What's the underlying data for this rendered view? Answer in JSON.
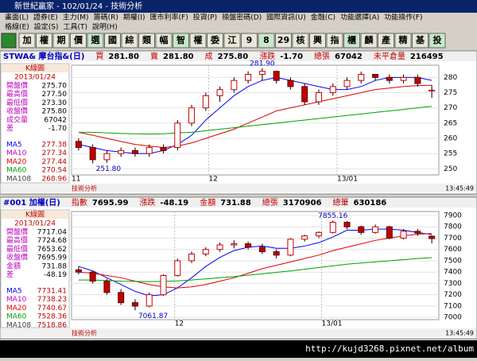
{
  "title_bar": "新世紀贏家 - 102/01/24 - 技術分析",
  "menu": {
    "row1": [
      "畫面(L)",
      "證券(E)",
      "主力(M)",
      "籌碼(R)",
      "期權(I)",
      "匯市利率(F)",
      "投資(P)",
      "操盤密碼(D)",
      "國際資訊(U)",
      "金融(C)",
      "功能選擇(A)",
      "功能操作(F)"
    ],
    "row2": [
      "格線(E)",
      "設定(S)",
      "工具(T)",
      "說明(H)"
    ]
  },
  "toolbar": [
    "加",
    "權",
    "期",
    "價",
    "選",
    "國",
    "綜",
    "類",
    "幅",
    "智",
    "權",
    "委",
    "江",
    "9",
    "8",
    "29",
    "核",
    "興",
    "指",
    "櫃",
    "麟",
    "產",
    "精",
    "基",
    "投"
  ],
  "panels": [
    {
      "symbol": "STWA& 摩台指&(日)",
      "header": [
        {
          "label": "買",
          "value": "281.80"
        },
        {
          "label": "賣",
          "value": "281.80"
        },
        {
          "label": "成",
          "value": "275.80"
        },
        {
          "label": "漲跌",
          "value": "-1.70"
        },
        {
          "label": "總張",
          "value": "67042"
        },
        {
          "label": "未平倉量",
          "value": "216495"
        }
      ],
      "info_title": "K線圖",
      "info_date": "2013/01/24",
      "info": [
        {
          "label": "開盤價",
          "value": "275.70",
          "color": "#c000c0"
        },
        {
          "label": "最高價",
          "value": "277.50",
          "color": "#c000c0"
        },
        {
          "label": "最低價",
          "value": "273.30",
          "color": "#c000c0"
        },
        {
          "label": "收盤價",
          "value": "275.80",
          "color": "#c000c0"
        },
        {
          "label": "成交量",
          "value": "67042",
          "color": "#c000c0"
        },
        {
          "label": "差",
          "value": "-1.70",
          "color": "#c000c0"
        }
      ],
      "ma_info": [
        {
          "label": "MA5",
          "value": "277.38",
          "color": "#0000ff"
        },
        {
          "label": "MA10",
          "value": "277.34",
          "color": "#c000c0"
        },
        {
          "label": "MA20",
          "value": "277.44",
          "color": "#e00000"
        },
        {
          "label": "MA60",
          "value": "270.54",
          "color": "#00a000"
        },
        {
          "label": "MA108",
          "value": "268.96",
          "color": "#404040"
        }
      ],
      "chart": {
        "ylim": [
          248,
          284
        ],
        "yticks": [
          250,
          255,
          260,
          265,
          270,
          275,
          280
        ],
        "candles": [
          [
            259,
            260,
            256,
            257
          ],
          [
            257,
            258,
            251.8,
            253
          ],
          [
            253,
            256,
            252,
            255
          ],
          [
            255,
            257,
            254,
            256
          ],
          [
            256,
            257,
            254,
            255
          ],
          [
            255,
            258,
            254,
            257
          ],
          [
            257,
            258,
            255,
            256
          ],
          [
            257,
            266,
            256,
            265
          ],
          [
            265,
            271,
            264,
            270
          ],
          [
            270,
            275,
            269,
            274
          ],
          [
            274,
            277,
            272,
            276
          ],
          [
            276,
            280,
            275,
            279
          ],
          [
            279,
            282,
            278,
            281
          ],
          [
            281,
            283,
            279,
            282
          ],
          [
            282,
            282,
            278,
            279
          ],
          [
            279,
            280,
            276,
            277
          ],
          [
            277,
            278,
            271,
            272
          ],
          [
            272,
            276,
            271,
            275
          ],
          [
            275,
            278,
            274,
            277
          ],
          [
            277,
            280,
            276,
            279
          ],
          [
            279,
            281.9,
            278,
            281
          ],
          [
            281,
            281,
            279,
            280
          ],
          [
            280,
            281,
            278,
            279
          ],
          [
            279,
            281,
            278,
            280
          ],
          [
            280,
            281,
            277,
            278
          ],
          [
            275.7,
            277.5,
            273.3,
            275.8
          ]
        ],
        "ma": [
          {
            "color": "#0000ff",
            "values": [
              258,
              257,
              256,
              255.5,
              255,
              255,
              256,
              258,
              261,
              266,
              270,
              274,
              277,
              279,
              280,
              279,
              278,
              277,
              276,
              276,
              277,
              279,
              280,
              280,
              280,
              279
            ]
          },
          {
            "color": "#e00000",
            "values": [
              262,
              261,
              260,
              259,
              258,
              257.5,
              257,
              257.5,
              258.5,
              260,
              261.5,
              263,
              265,
              267,
              269,
              270,
              271,
              272,
              273,
              274,
              275,
              276,
              276.5,
              277,
              277.3,
              277.4
            ]
          },
          {
            "color": "#00a000",
            "values": [
              262,
              262,
              261.8,
              261.6,
              261.5,
              261.4,
              261.5,
              261.8,
              262,
              262.5,
              263,
              263.5,
              264,
              264.5,
              265,
              265.5,
              266,
              266.5,
              267,
              267.5,
              268,
              268.5,
              269,
              269.5,
              270,
              270.5
            ]
          }
        ],
        "high_label": "281.90",
        "low_label": "251.80",
        "dates": [
          "11",
          "12",
          "13/01"
        ]
      },
      "status": "技術分析",
      "time": "13:45:49"
    },
    {
      "symbol": "#001 加權(日)",
      "header": [
        {
          "label": "指數",
          "value": "7695.99"
        },
        {
          "label": "漲跌",
          "value": "-48.19"
        },
        {
          "label": "金額",
          "value": "731.88"
        },
        {
          "label": "總張",
          "value": "3170906"
        },
        {
          "label": "總筆",
          "value": "630186"
        }
      ],
      "info_title": "K線圖",
      "info_date": "2013/01/24",
      "info": [
        {
          "label": "開盤價",
          "value": "7717.04",
          "color": "#c000c0"
        },
        {
          "label": "最高價",
          "value": "7724.68",
          "color": "#c000c0"
        },
        {
          "label": "最低價",
          "value": "7653.62",
          "color": "#c000c0"
        },
        {
          "label": "收盤價",
          "value": "7695.99",
          "color": "#c000c0"
        },
        {
          "label": "金額",
          "value": "731.88",
          "color": "#c000c0"
        },
        {
          "label": "差",
          "value": "-48.19",
          "color": "#c000c0"
        }
      ],
      "ma_info": [
        {
          "label": "MA5",
          "value": "7731.41",
          "color": "#0000ff"
        },
        {
          "label": "MA10",
          "value": "7738.23",
          "color": "#c000c0"
        },
        {
          "label": "MA20",
          "value": "7740.67",
          "color": "#e00000"
        },
        {
          "label": "MA60",
          "value": "7528.36",
          "color": "#00a000"
        },
        {
          "label": "MA108",
          "value": "7518.86",
          "color": "#404040"
        }
      ],
      "chart": {
        "ylim": [
          6980,
          7935
        ],
        "yticks": [
          7000,
          7100,
          7200,
          7300,
          7400,
          7500,
          7600,
          7700,
          7800,
          7900
        ],
        "candles": [
          [
            7420,
            7450,
            7380,
            7400
          ],
          [
            7400,
            7410,
            7300,
            7320
          ],
          [
            7320,
            7340,
            7200,
            7220
          ],
          [
            7220,
            7250,
            7110,
            7130
          ],
          [
            7130,
            7160,
            7061.87,
            7100
          ],
          [
            7100,
            7220,
            7090,
            7200
          ],
          [
            7200,
            7380,
            7190,
            7370
          ],
          [
            7370,
            7520,
            7360,
            7500
          ],
          [
            7500,
            7580,
            7480,
            7560
          ],
          [
            7560,
            7620,
            7540,
            7600
          ],
          [
            7600,
            7660,
            7580,
            7640
          ],
          [
            7640,
            7680,
            7610,
            7650
          ],
          [
            7650,
            7670,
            7600,
            7620
          ],
          [
            7620,
            7650,
            7560,
            7580
          ],
          [
            7580,
            7600,
            7520,
            7550
          ],
          [
            7550,
            7700,
            7540,
            7690
          ],
          [
            7690,
            7730,
            7670,
            7720
          ],
          [
            7720,
            7760,
            7700,
            7750
          ],
          [
            7750,
            7855.16,
            7740,
            7840
          ],
          [
            7840,
            7850,
            7780,
            7800
          ],
          [
            7800,
            7810,
            7730,
            7750
          ],
          [
            7750,
            7820,
            7740,
            7800
          ],
          [
            7800,
            7810,
            7690,
            7700
          ],
          [
            7700,
            7780,
            7690,
            7760
          ],
          [
            7760,
            7780,
            7720,
            7744
          ],
          [
            7717.04,
            7724.68,
            7653.62,
            7695.99
          ]
        ],
        "ma": [
          {
            "color": "#0000ff",
            "values": [
              7450,
              7410,
              7350,
              7290,
              7230,
              7190,
              7200,
              7260,
              7350,
              7450,
              7530,
              7590,
              7620,
              7630,
              7610,
              7610,
              7630,
              7660,
              7710,
              7770,
              7770,
              7780,
              7780,
              7770,
              7750,
              7731
            ]
          },
          {
            "color": "#e00000",
            "values": [
              7400,
              7390,
              7370,
              7350,
              7320,
              7290,
              7270,
              7260,
              7270,
              7290,
              7320,
              7350,
              7390,
              7430,
              7460,
              7490,
              7520,
              7550,
              7590,
              7620,
              7650,
              7680,
              7700,
              7720,
              7735,
              7740
            ]
          },
          {
            "color": "#00a000",
            "values": [
              7330,
              7330,
              7325,
              7320,
              7318,
              7316,
              7318,
              7322,
              7330,
              7340,
              7350,
              7360,
              7372,
              7385,
              7398,
              7410,
              7425,
              7440,
              7455,
              7470,
              7480,
              7490,
              7500,
              7510,
              7520,
              7528
            ]
          }
        ],
        "high_label": "7855.16",
        "low_label": "7061.87",
        "dates": [
          "12",
          "13/01"
        ]
      },
      "status": "技術分析",
      "time": "13:45:49"
    }
  ],
  "footer_url": "http://kujd3268.pixnet.net/album"
}
